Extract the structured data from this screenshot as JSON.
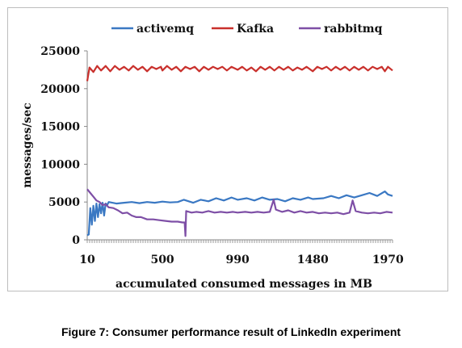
{
  "caption": "Figure 7: Consumer performance result of LinkedIn experiment",
  "chart_data": {
    "type": "line",
    "title": "",
    "xlabel": "accumulated consumed messages in MB",
    "ylabel": "messages/sec",
    "xlim": [
      10,
      2000
    ],
    "ylim": [
      0,
      25000
    ],
    "x_ticks": [
      10,
      500,
      990,
      1480,
      1970
    ],
    "y_ticks": [
      0,
      5000,
      10000,
      15000,
      20000,
      25000
    ],
    "legend_position": "top",
    "grid": false,
    "series": [
      {
        "name": "activemq",
        "color": "#3a78c3",
        "points": [
          [
            10,
            600
          ],
          [
            20,
            700
          ],
          [
            30,
            4200
          ],
          [
            40,
            2000
          ],
          [
            50,
            4500
          ],
          [
            60,
            2500
          ],
          [
            70,
            4800
          ],
          [
            80,
            3000
          ],
          [
            90,
            4700
          ],
          [
            100,
            3500
          ],
          [
            110,
            4900
          ],
          [
            120,
            3200
          ],
          [
            130,
            4800
          ],
          [
            140,
            4600
          ],
          [
            150,
            5000
          ],
          [
            200,
            4800
          ],
          [
            250,
            4900
          ],
          [
            300,
            5000
          ],
          [
            350,
            4850
          ],
          [
            400,
            5000
          ],
          [
            450,
            4900
          ],
          [
            500,
            5050
          ],
          [
            550,
            4950
          ],
          [
            600,
            5000
          ],
          [
            640,
            5300
          ],
          [
            700,
            4900
          ],
          [
            750,
            5300
          ],
          [
            800,
            5100
          ],
          [
            850,
            5500
          ],
          [
            900,
            5200
          ],
          [
            950,
            5600
          ],
          [
            990,
            5300
          ],
          [
            1050,
            5500
          ],
          [
            1100,
            5200
          ],
          [
            1150,
            5600
          ],
          [
            1200,
            5300
          ],
          [
            1250,
            5400
          ],
          [
            1300,
            5100
          ],
          [
            1350,
            5500
          ],
          [
            1400,
            5300
          ],
          [
            1450,
            5600
          ],
          [
            1480,
            5400
          ],
          [
            1550,
            5500
          ],
          [
            1600,
            5800
          ],
          [
            1650,
            5500
          ],
          [
            1700,
            5900
          ],
          [
            1750,
            5600
          ],
          [
            1800,
            5900
          ],
          [
            1850,
            6200
          ],
          [
            1900,
            5800
          ],
          [
            1950,
            6400
          ],
          [
            1970,
            6000
          ],
          [
            2000,
            5800
          ]
        ]
      },
      {
        "name": "Kafka",
        "color": "#c9302c",
        "points": [
          [
            10,
            21000
          ],
          [
            25,
            22800
          ],
          [
            50,
            22200
          ],
          [
            75,
            23000
          ],
          [
            100,
            22400
          ],
          [
            130,
            23000
          ],
          [
            160,
            22300
          ],
          [
            190,
            23000
          ],
          [
            220,
            22500
          ],
          [
            250,
            22900
          ],
          [
            280,
            22400
          ],
          [
            310,
            23000
          ],
          [
            340,
            22500
          ],
          [
            370,
            22900
          ],
          [
            400,
            22300
          ],
          [
            430,
            22900
          ],
          [
            460,
            22600
          ],
          [
            490,
            22900
          ],
          [
            500,
            22400
          ],
          [
            530,
            23000
          ],
          [
            560,
            22500
          ],
          [
            590,
            22900
          ],
          [
            620,
            22300
          ],
          [
            650,
            22900
          ],
          [
            680,
            22600
          ],
          [
            710,
            22900
          ],
          [
            740,
            22300
          ],
          [
            770,
            22900
          ],
          [
            800,
            22500
          ],
          [
            830,
            22900
          ],
          [
            860,
            22600
          ],
          [
            890,
            22900
          ],
          [
            920,
            22400
          ],
          [
            950,
            22900
          ],
          [
            990,
            22500
          ],
          [
            1020,
            22900
          ],
          [
            1050,
            22400
          ],
          [
            1080,
            22800
          ],
          [
            1110,
            22300
          ],
          [
            1140,
            22900
          ],
          [
            1170,
            22500
          ],
          [
            1200,
            22900
          ],
          [
            1230,
            22400
          ],
          [
            1260,
            22900
          ],
          [
            1290,
            22500
          ],
          [
            1320,
            22900
          ],
          [
            1350,
            22400
          ],
          [
            1380,
            22800
          ],
          [
            1410,
            22500
          ],
          [
            1440,
            22900
          ],
          [
            1480,
            22300
          ],
          [
            1510,
            22900
          ],
          [
            1540,
            22600
          ],
          [
            1570,
            22900
          ],
          [
            1600,
            22400
          ],
          [
            1630,
            22900
          ],
          [
            1660,
            22500
          ],
          [
            1690,
            22900
          ],
          [
            1720,
            22400
          ],
          [
            1750,
            22900
          ],
          [
            1780,
            22500
          ],
          [
            1810,
            22900
          ],
          [
            1840,
            22400
          ],
          [
            1870,
            22900
          ],
          [
            1900,
            22600
          ],
          [
            1930,
            22900
          ],
          [
            1950,
            22300
          ],
          [
            1970,
            22900
          ],
          [
            2000,
            22400
          ]
        ]
      },
      {
        "name": "rabbitmq",
        "color": "#7e4fa6",
        "points": [
          [
            10,
            6700
          ],
          [
            30,
            6200
          ],
          [
            50,
            5700
          ],
          [
            70,
            5200
          ],
          [
            90,
            5000
          ],
          [
            110,
            4600
          ],
          [
            130,
            4700
          ],
          [
            150,
            4300
          ],
          [
            180,
            4200
          ],
          [
            210,
            3900
          ],
          [
            240,
            3500
          ],
          [
            270,
            3600
          ],
          [
            300,
            3200
          ],
          [
            330,
            3000
          ],
          [
            360,
            3000
          ],
          [
            400,
            2700
          ],
          [
            440,
            2700
          ],
          [
            480,
            2600
          ],
          [
            520,
            2500
          ],
          [
            560,
            2400
          ],
          [
            600,
            2400
          ],
          [
            630,
            2300
          ],
          [
            645,
            2300
          ],
          [
            650,
            500
          ],
          [
            655,
            3800
          ],
          [
            690,
            3600
          ],
          [
            720,
            3700
          ],
          [
            760,
            3600
          ],
          [
            800,
            3800
          ],
          [
            840,
            3600
          ],
          [
            880,
            3700
          ],
          [
            920,
            3600
          ],
          [
            960,
            3700
          ],
          [
            990,
            3600
          ],
          [
            1040,
            3700
          ],
          [
            1080,
            3600
          ],
          [
            1120,
            3700
          ],
          [
            1160,
            3600
          ],
          [
            1200,
            3700
          ],
          [
            1225,
            5300
          ],
          [
            1240,
            4000
          ],
          [
            1280,
            3700
          ],
          [
            1320,
            3900
          ],
          [
            1360,
            3600
          ],
          [
            1400,
            3800
          ],
          [
            1440,
            3600
          ],
          [
            1480,
            3700
          ],
          [
            1520,
            3500
          ],
          [
            1560,
            3600
          ],
          [
            1600,
            3500
          ],
          [
            1640,
            3600
          ],
          [
            1680,
            3400
          ],
          [
            1720,
            3600
          ],
          [
            1740,
            5200
          ],
          [
            1760,
            3800
          ],
          [
            1800,
            3600
          ],
          [
            1840,
            3500
          ],
          [
            1880,
            3600
          ],
          [
            1920,
            3500
          ],
          [
            1960,
            3700
          ],
          [
            2000,
            3600
          ]
        ]
      }
    ]
  }
}
